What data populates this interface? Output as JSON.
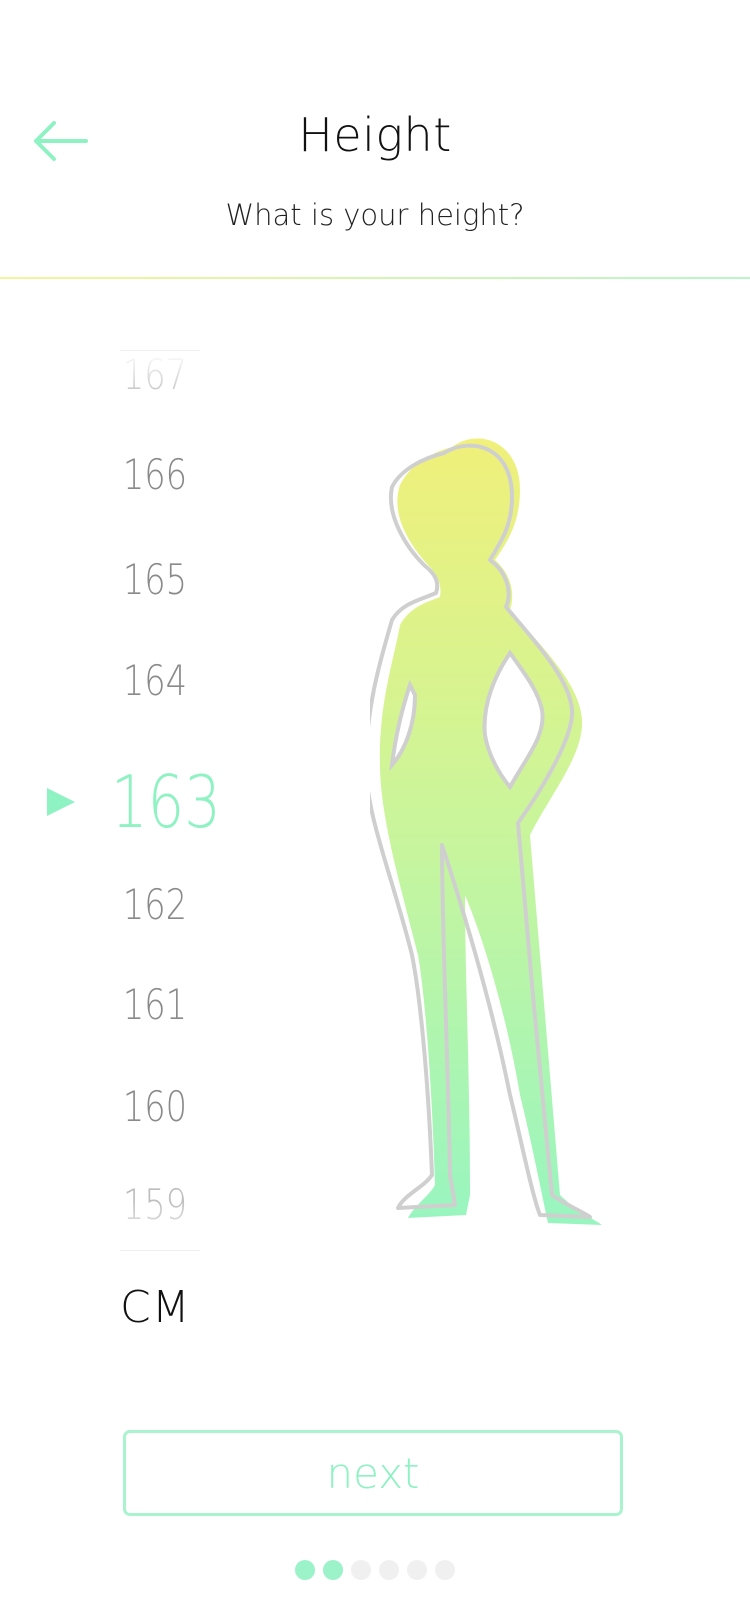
{
  "header": {
    "title": "Height",
    "subtitle": "What is your height?",
    "back_icon": "arrow-left-icon"
  },
  "picker": {
    "values": [
      "167",
      "166",
      "165",
      "164",
      "163",
      "162",
      "161",
      "160",
      "159"
    ],
    "selected": "163",
    "unit": "CM",
    "pointer_icon": "triangle-right-icon"
  },
  "actions": {
    "next_label": "next"
  },
  "pagination": {
    "total": 6,
    "active": [
      0,
      1
    ]
  },
  "colors": {
    "accent": "#8ff2c3",
    "figure_top": "#f0f07a",
    "figure_bottom": "#98f5c0",
    "outline": "#cfcfcf"
  }
}
